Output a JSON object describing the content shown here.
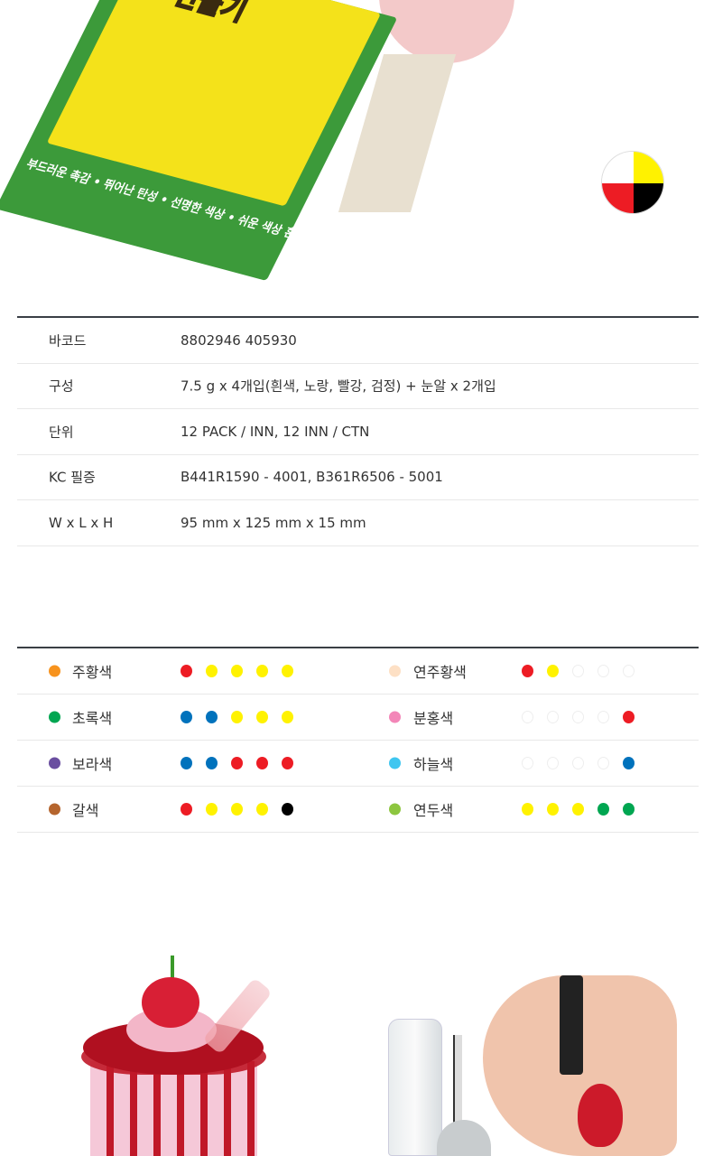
{
  "hero": {
    "package_title": "만들기",
    "package_slogan": "부드러운 촉감 • 뛰어난 탄성 • 선명한 색상 • 쉬운 색상 혼합",
    "color_wheel": [
      "#ffffff",
      "#fff200",
      "#ed1c24",
      "#000000"
    ]
  },
  "spec_table": {
    "rows": [
      {
        "label": "바코드",
        "value": "8802946 405930"
      },
      {
        "label": "구성",
        "value": "7.5 g x 4개입(흰색, 노랑, 빨강, 검정) + 눈알 x 2개입"
      },
      {
        "label": "단위",
        "value": "12 PACK / INN, 12 INN / CTN"
      },
      {
        "label": "KC 필증",
        "value": "B441R1590 - 4001,  B361R6506 - 5001"
      },
      {
        "label": "W x L x H",
        "value": "95 mm x 125 mm x 15 mm"
      }
    ]
  },
  "color_mix": {
    "rows": [
      {
        "left": {
          "name": "주황색",
          "color": "#f7931e",
          "mix": [
            "#ed1c24",
            "#fff200",
            "#fff200",
            "#fff200",
            "#fff200"
          ]
        },
        "right": {
          "name": "연주황색",
          "color": "#fde0c5",
          "mix": [
            "#ed1c24",
            "#fff200",
            "",
            "",
            ""
          ]
        }
      },
      {
        "left": {
          "name": "초록색",
          "color": "#00a651",
          "mix": [
            "#0072bc",
            "#0072bc",
            "#fff200",
            "#fff200",
            "#fff200"
          ]
        },
        "right": {
          "name": "분홍색",
          "color": "#f386b8",
          "mix": [
            "",
            "",
            "",
            "",
            "#ed1c24"
          ]
        }
      },
      {
        "left": {
          "name": "보라색",
          "color": "#6a4ea0",
          "mix": [
            "#0072bc",
            "#0072bc",
            "#ed1c24",
            "#ed1c24",
            "#ed1c24"
          ]
        },
        "right": {
          "name": "하늘색",
          "color": "#3fc6f0",
          "mix": [
            "",
            "",
            "",
            "",
            "#0072bc"
          ]
        }
      },
      {
        "left": {
          "name": "갈색",
          "color": "#b5652e",
          "mix": [
            "#ed1c24",
            "#fff200",
            "#fff200",
            "#fff200",
            "#000000"
          ]
        },
        "right": {
          "name": "연두색",
          "color": "#8dc63f",
          "mix": [
            "#fff200",
            "#fff200",
            "#fff200",
            "#00a651",
            "#00a651"
          ]
        }
      }
    ]
  }
}
